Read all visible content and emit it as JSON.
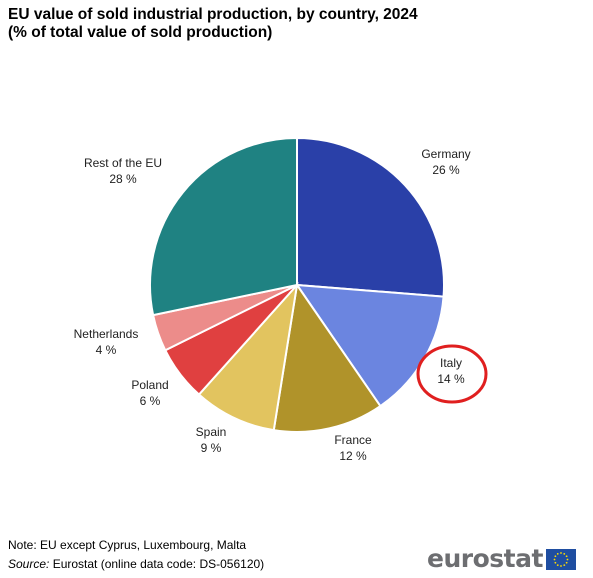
{
  "title": {
    "line1": "EU value of sold industrial production, by country, 2024",
    "line2": "(% of total value of sold production)"
  },
  "chart_data": {
    "type": "pie",
    "slices": [
      {
        "label": "Germany",
        "value": 26,
        "value_text": "26 %",
        "color": "#2a40a8"
      },
      {
        "label": "Italy",
        "value": 14,
        "value_text": "14 %",
        "color": "#6b85e0",
        "highlighted": true
      },
      {
        "label": "France",
        "value": 12,
        "value_text": "12 %",
        "color": "#b0932a"
      },
      {
        "label": "Spain",
        "value": 9,
        "value_text": "9 %",
        "color": "#e2c45f"
      },
      {
        "label": "Poland",
        "value": 6,
        "value_text": "6 %",
        "color": "#e04040"
      },
      {
        "label": "Netherlands",
        "value": 4,
        "value_text": "4 %",
        "color": "#ec8c8a"
      },
      {
        "label": "Rest of the EU",
        "value": 28,
        "value_text": "28 %",
        "color": "#1f8282"
      }
    ],
    "start": "12 o'clock",
    "direction": "clockwise",
    "highlight_color": "#e01f1f"
  },
  "footer": {
    "note": "Note: EU except Cyprus, Luxembourg,  Malta",
    "source_label": "Source:",
    "source_text": " Eurostat (online data code: DS-056120)"
  },
  "logo": {
    "text": "eurostat",
    "icon": "eu-flag-icon",
    "color": "#6d6e71",
    "flag_color": "#1f4ea1",
    "star_color": "#ffdd00"
  }
}
